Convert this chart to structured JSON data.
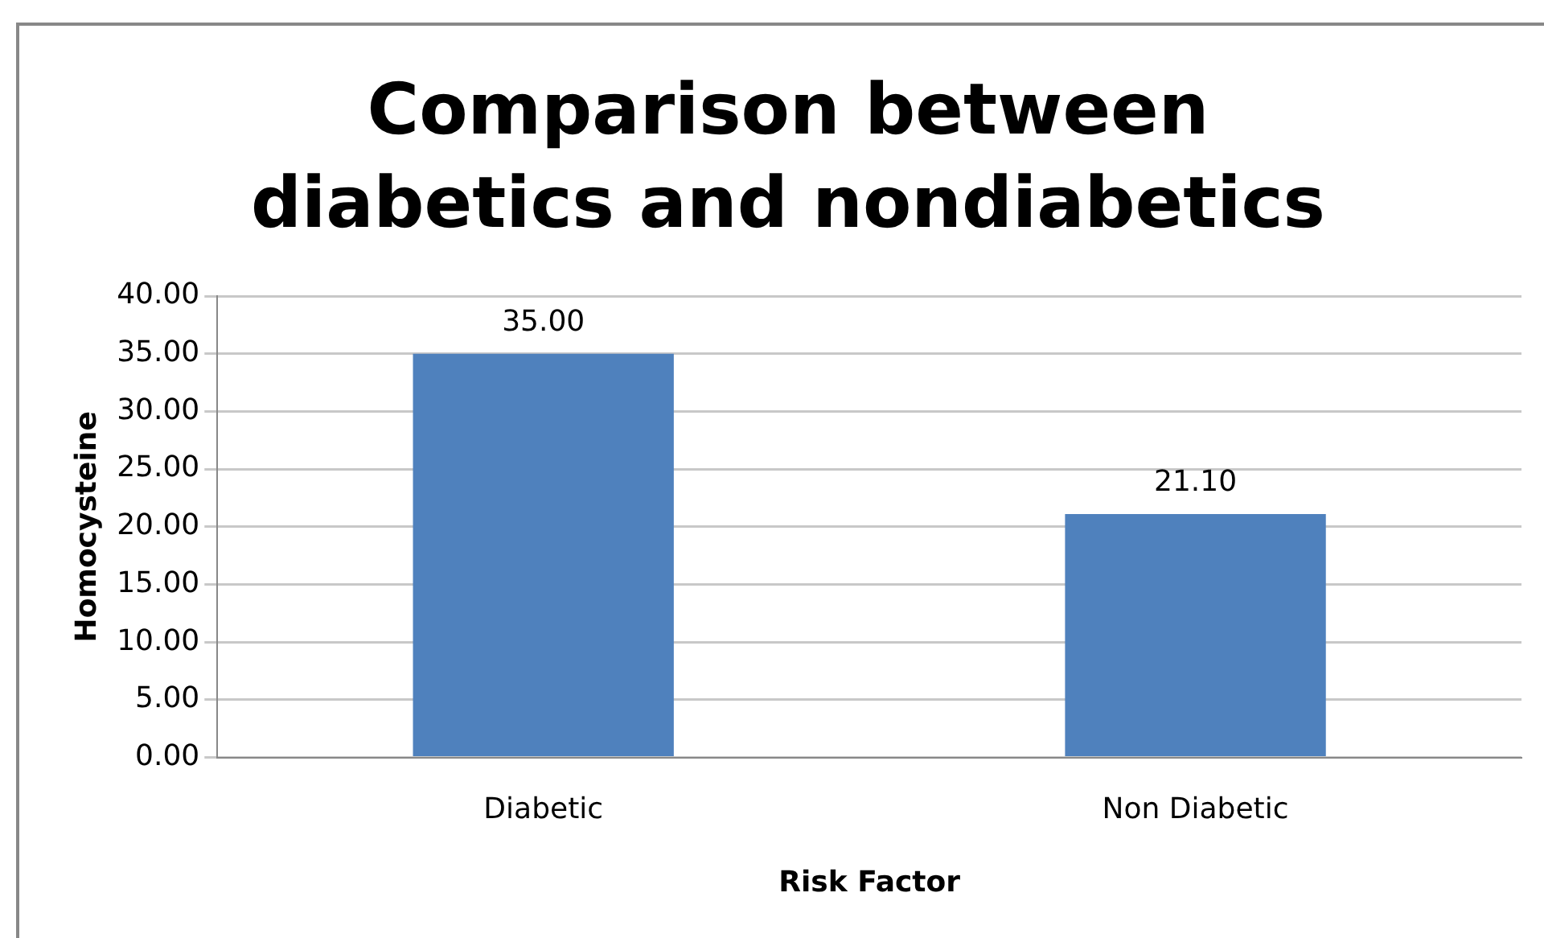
{
  "chart_data": {
    "type": "bar",
    "title": "Comparison between diabetics and nondiabetics",
    "xlabel": "Risk Factor",
    "ylabel": "Homocysteine",
    "categories": [
      "Diabetic",
      "Non Diabetic"
    ],
    "values": [
      35.0,
      21.1
    ],
    "value_labels": [
      "35.00",
      "21.10"
    ],
    "color": "#4f81bd",
    "ylim": [
      0,
      40
    ],
    "yticks": [
      {
        "value": 0,
        "label": "0.00"
      },
      {
        "value": 5,
        "label": "5.00"
      },
      {
        "value": 10,
        "label": "10.00"
      },
      {
        "value": 15,
        "label": "15.00"
      },
      {
        "value": 20,
        "label": "20.00"
      },
      {
        "value": 25,
        "label": "25.00"
      },
      {
        "value": 30,
        "label": "30.00"
      },
      {
        "value": 35,
        "label": "35.00"
      },
      {
        "value": 40,
        "label": "40.00"
      }
    ],
    "grid": "y",
    "legend": false
  }
}
